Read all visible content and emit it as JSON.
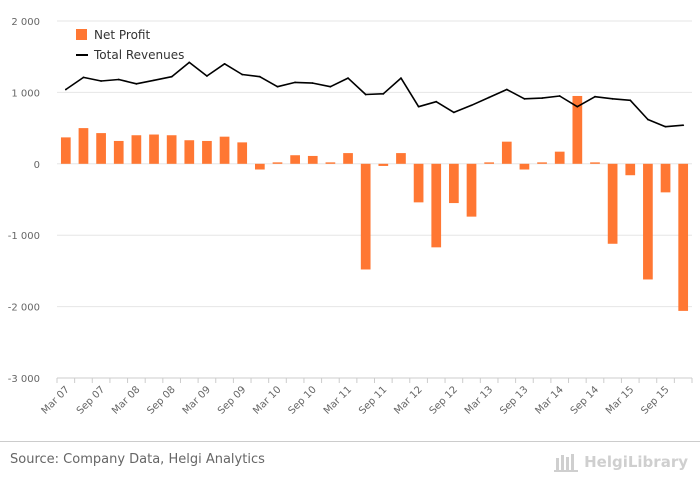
{
  "chart_data": {
    "type": "bar+line",
    "categories": [
      "Mar 07",
      "Jun 07",
      "Sep 07",
      "Dec 07",
      "Mar 08",
      "Jun 08",
      "Sep 08",
      "Dec 08",
      "Mar 09",
      "Jun 09",
      "Sep 09",
      "Dec 09",
      "Mar 10",
      "Jun 10",
      "Sep 10",
      "Dec 10",
      "Mar 11",
      "Jun 11",
      "Sep 11",
      "Dec 11",
      "Mar 12",
      "Jun 12",
      "Sep 12",
      "Dec 12",
      "Mar 13",
      "Jun 13",
      "Sep 13",
      "Dec 13",
      "Mar 14",
      "Jun 14",
      "Sep 14",
      "Dec 14",
      "Mar 15",
      "Jun 15",
      "Sep 15",
      "Dec 15"
    ],
    "x_tick_labels": [
      "Mar 07",
      "Sep 07",
      "Mar 08",
      "Sep 08",
      "Mar 09",
      "Sep 09",
      "Mar 10",
      "Sep 10",
      "Mar 11",
      "Sep 11",
      "Mar 12",
      "Sep 12",
      "Mar 13",
      "Sep 13",
      "Mar 14",
      "Sep 14",
      "Mar 15",
      "Sep 15"
    ],
    "series": [
      {
        "name": "Net Profit",
        "kind": "bar",
        "color": "#ff7733",
        "values": [
          370,
          500,
          430,
          320,
          400,
          410,
          400,
          330,
          320,
          380,
          300,
          -80,
          20,
          120,
          110,
          20,
          150,
          -1480,
          -30,
          150,
          -540,
          -1170,
          -550,
          -740,
          20,
          310,
          -80,
          20,
          170,
          950,
          20,
          -1120,
          -160,
          -1620,
          -400,
          -2060
        ]
      },
      {
        "name": "Total Revenues",
        "kind": "line",
        "color": "#000000",
        "values": [
          1040,
          1210,
          1160,
          1180,
          1120,
          1170,
          1220,
          1420,
          1230,
          1400,
          1250,
          1220,
          1080,
          1140,
          1130,
          1080,
          1200,
          970,
          980,
          1200,
          800,
          870,
          720,
          820,
          930,
          1040,
          910,
          920,
          950,
          800,
          940,
          910,
          890,
          620,
          520,
          540
        ]
      }
    ],
    "y_ticks": [
      2000,
      1000,
      0,
      -1000,
      -2000,
      -3000
    ],
    "y_tick_labels": [
      "2 000",
      "1 000",
      "0",
      "-1 000",
      "-2 000",
      "-3 000"
    ],
    "ylim": [
      -3000,
      2000
    ],
    "legend_position": "top-left",
    "title": "",
    "xlabel": "",
    "ylabel": ""
  },
  "footer": {
    "source": "Source: Company Data, Helgi Analytics",
    "brand": "HelgiLibrary"
  }
}
